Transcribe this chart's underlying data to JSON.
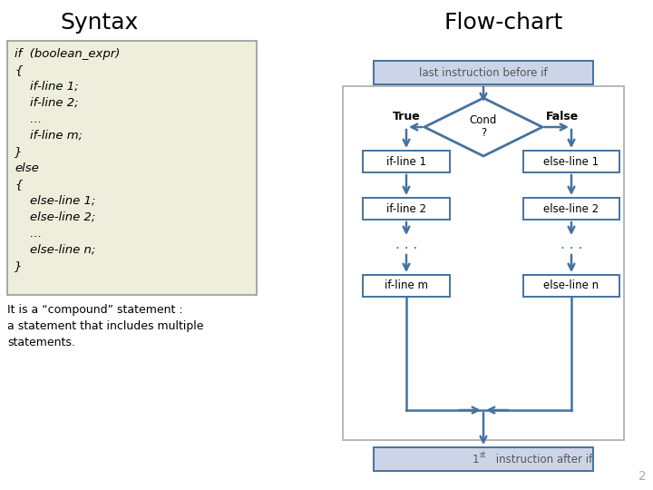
{
  "title_left": "Syntax",
  "title_right": "Flow-chart",
  "code_bg": "#eeeedd",
  "code_border": "#999999",
  "flow_color": "#4472a0",
  "box_bg": "#ffffff",
  "box_border": "#4472a0",
  "diamond_bg": "#ffffff",
  "diamond_border": "#4472a0",
  "top_box_bg": "#ccd5e8",
  "top_box_border": "#4472a0",
  "bottom_text": "It is a “compound” statement :\na statement that includes multiple\nstatements.",
  "slide_num": "2"
}
